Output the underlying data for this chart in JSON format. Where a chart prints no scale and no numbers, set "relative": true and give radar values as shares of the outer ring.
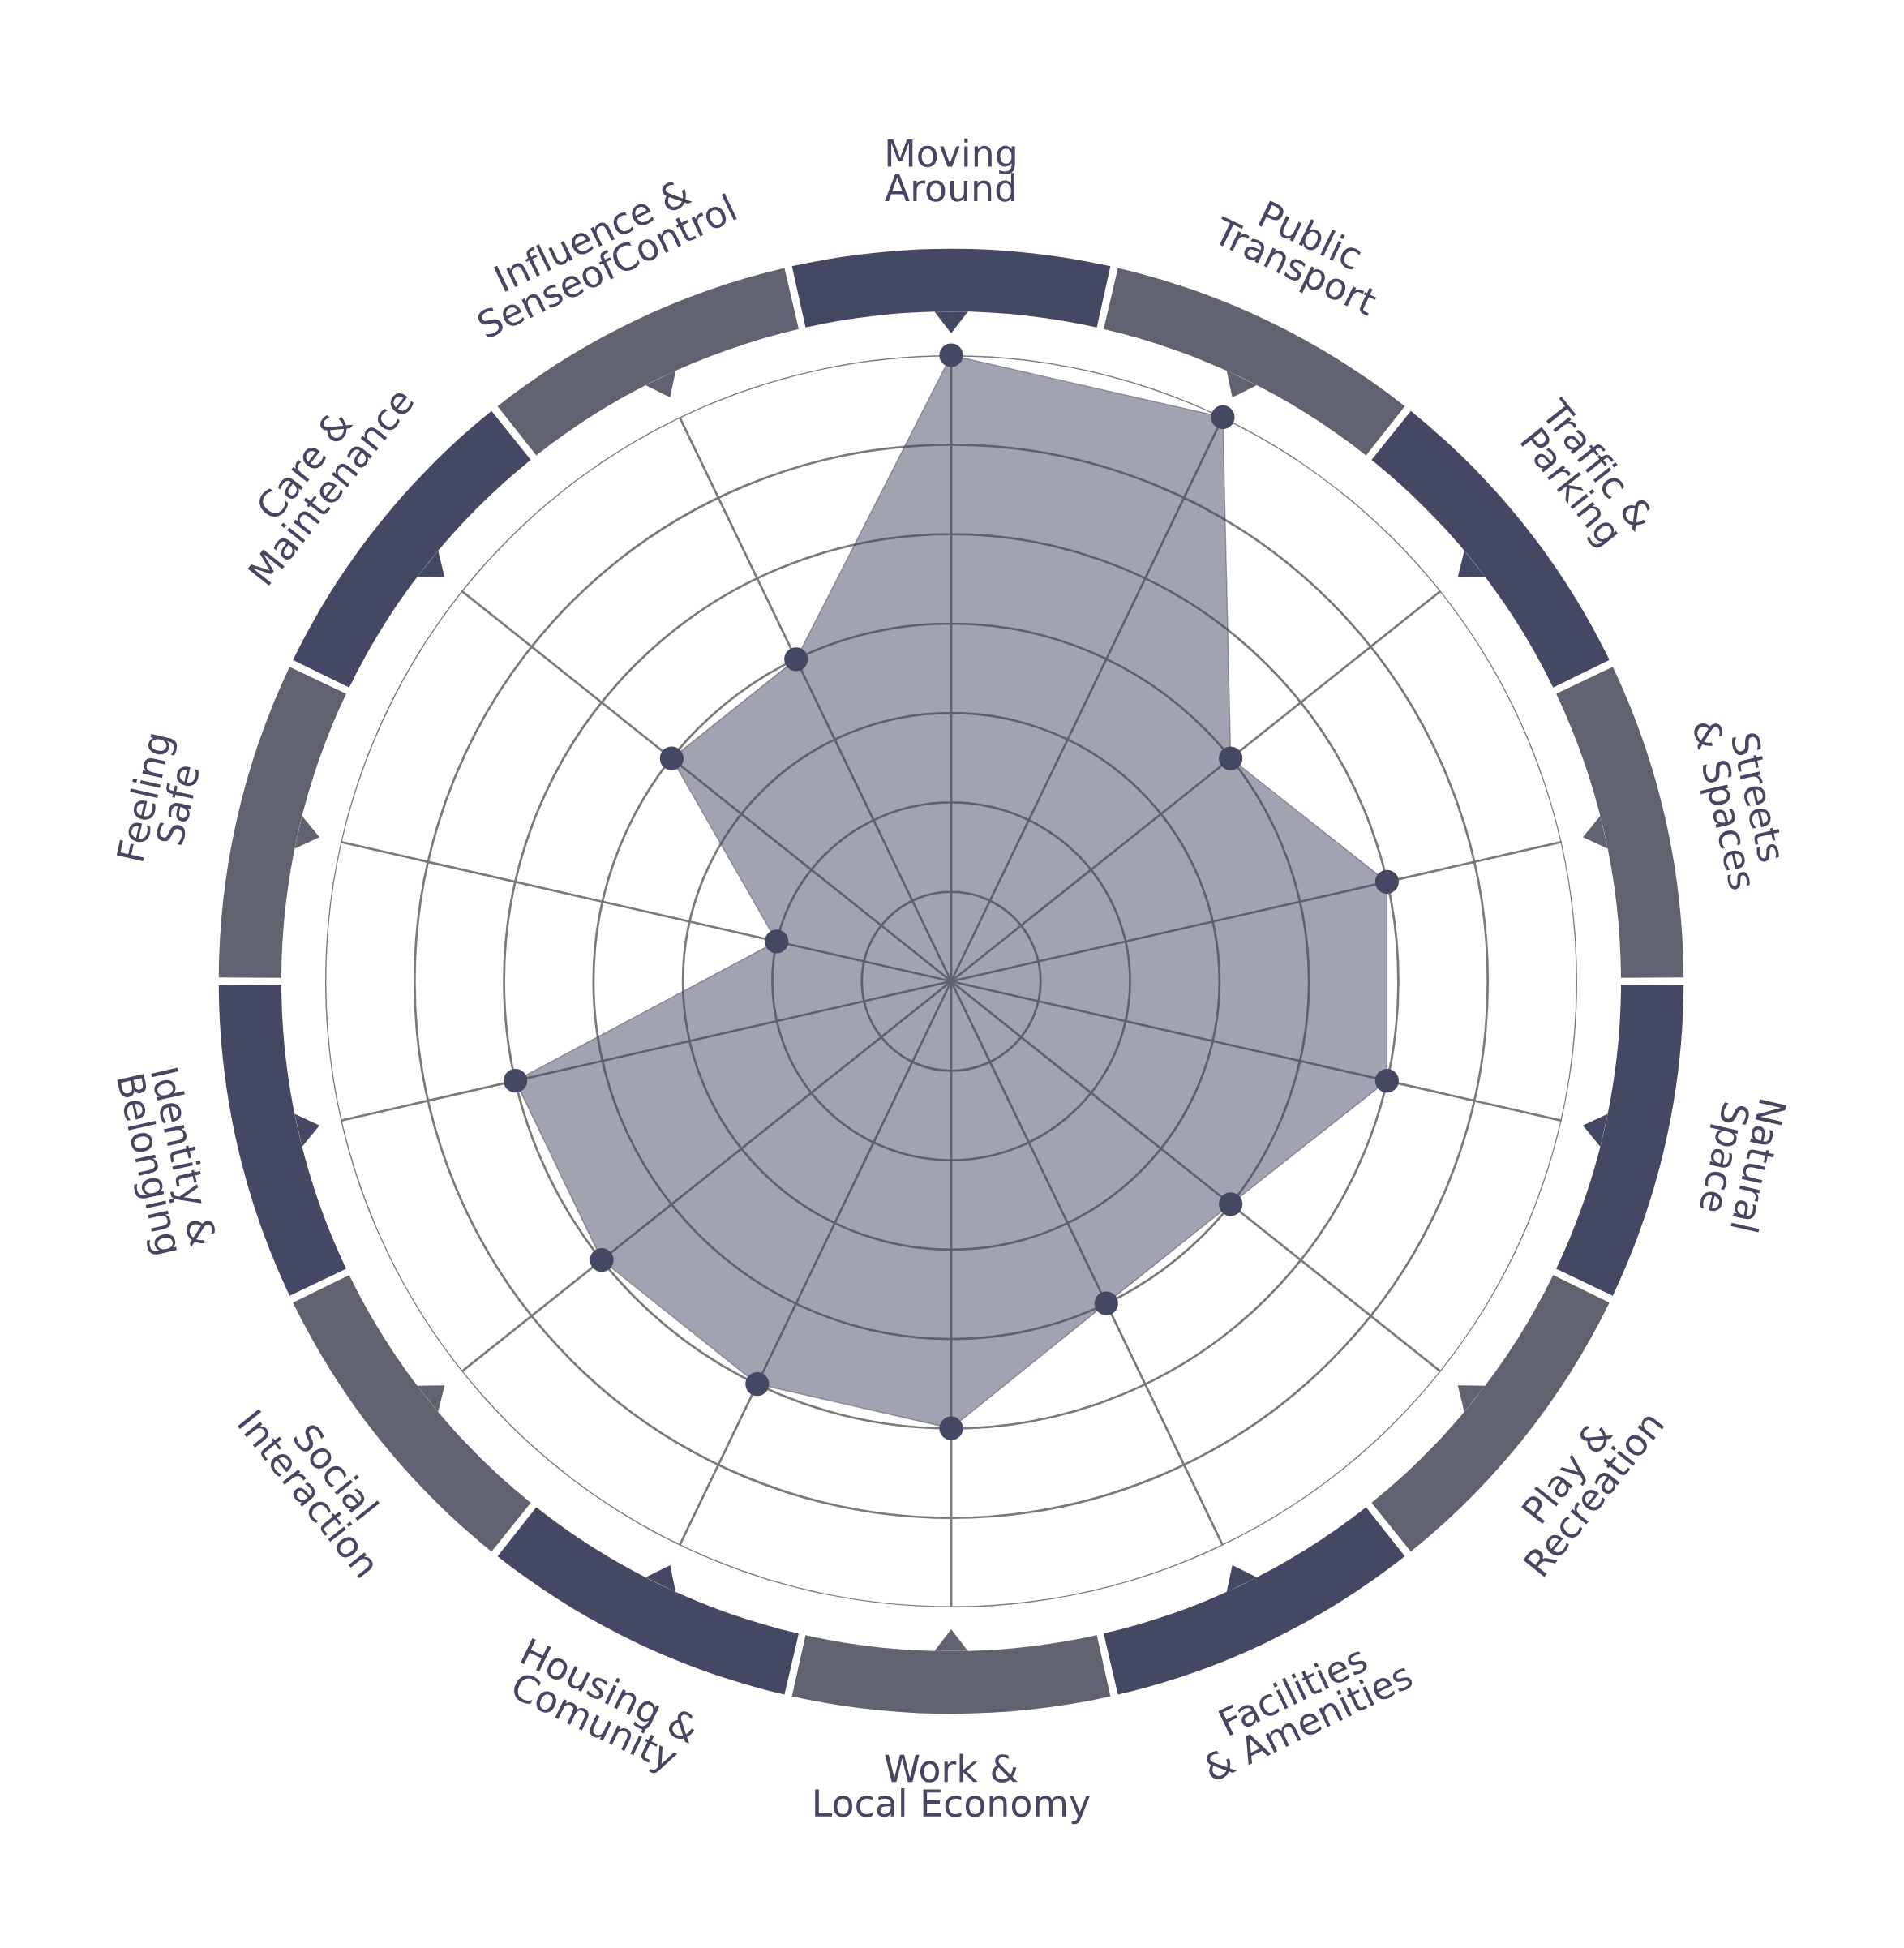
{
  "chart_data": {
    "type": "radar",
    "relative": true,
    "grid": true,
    "marker": "circle",
    "categories": [
      "Moving\nAround",
      "Public\nTransport",
      "Traffic &\nParking",
      "Streets\n& Spaces",
      "Natural\nSpace",
      "Play &\nRecreation",
      "Facilities\n& Amenities",
      "Work &\nLocal Economy",
      "Housing &\nComunity",
      "Social\nInteraction",
      "Identity &\nBelonging",
      "Feeling\nSafe",
      "Care &\nMaintenance",
      "Influence &\nSenseofControl"
    ],
    "series": [
      {
        "color": "#454863",
        "values": [
          1,
          1,
          0.571,
          0.714,
          0.714,
          0.571,
          0.571,
          0.714,
          0.714,
          0.714,
          0.714,
          0.286,
          0.571,
          0.571
        ]
      }
    ]
  }
}
